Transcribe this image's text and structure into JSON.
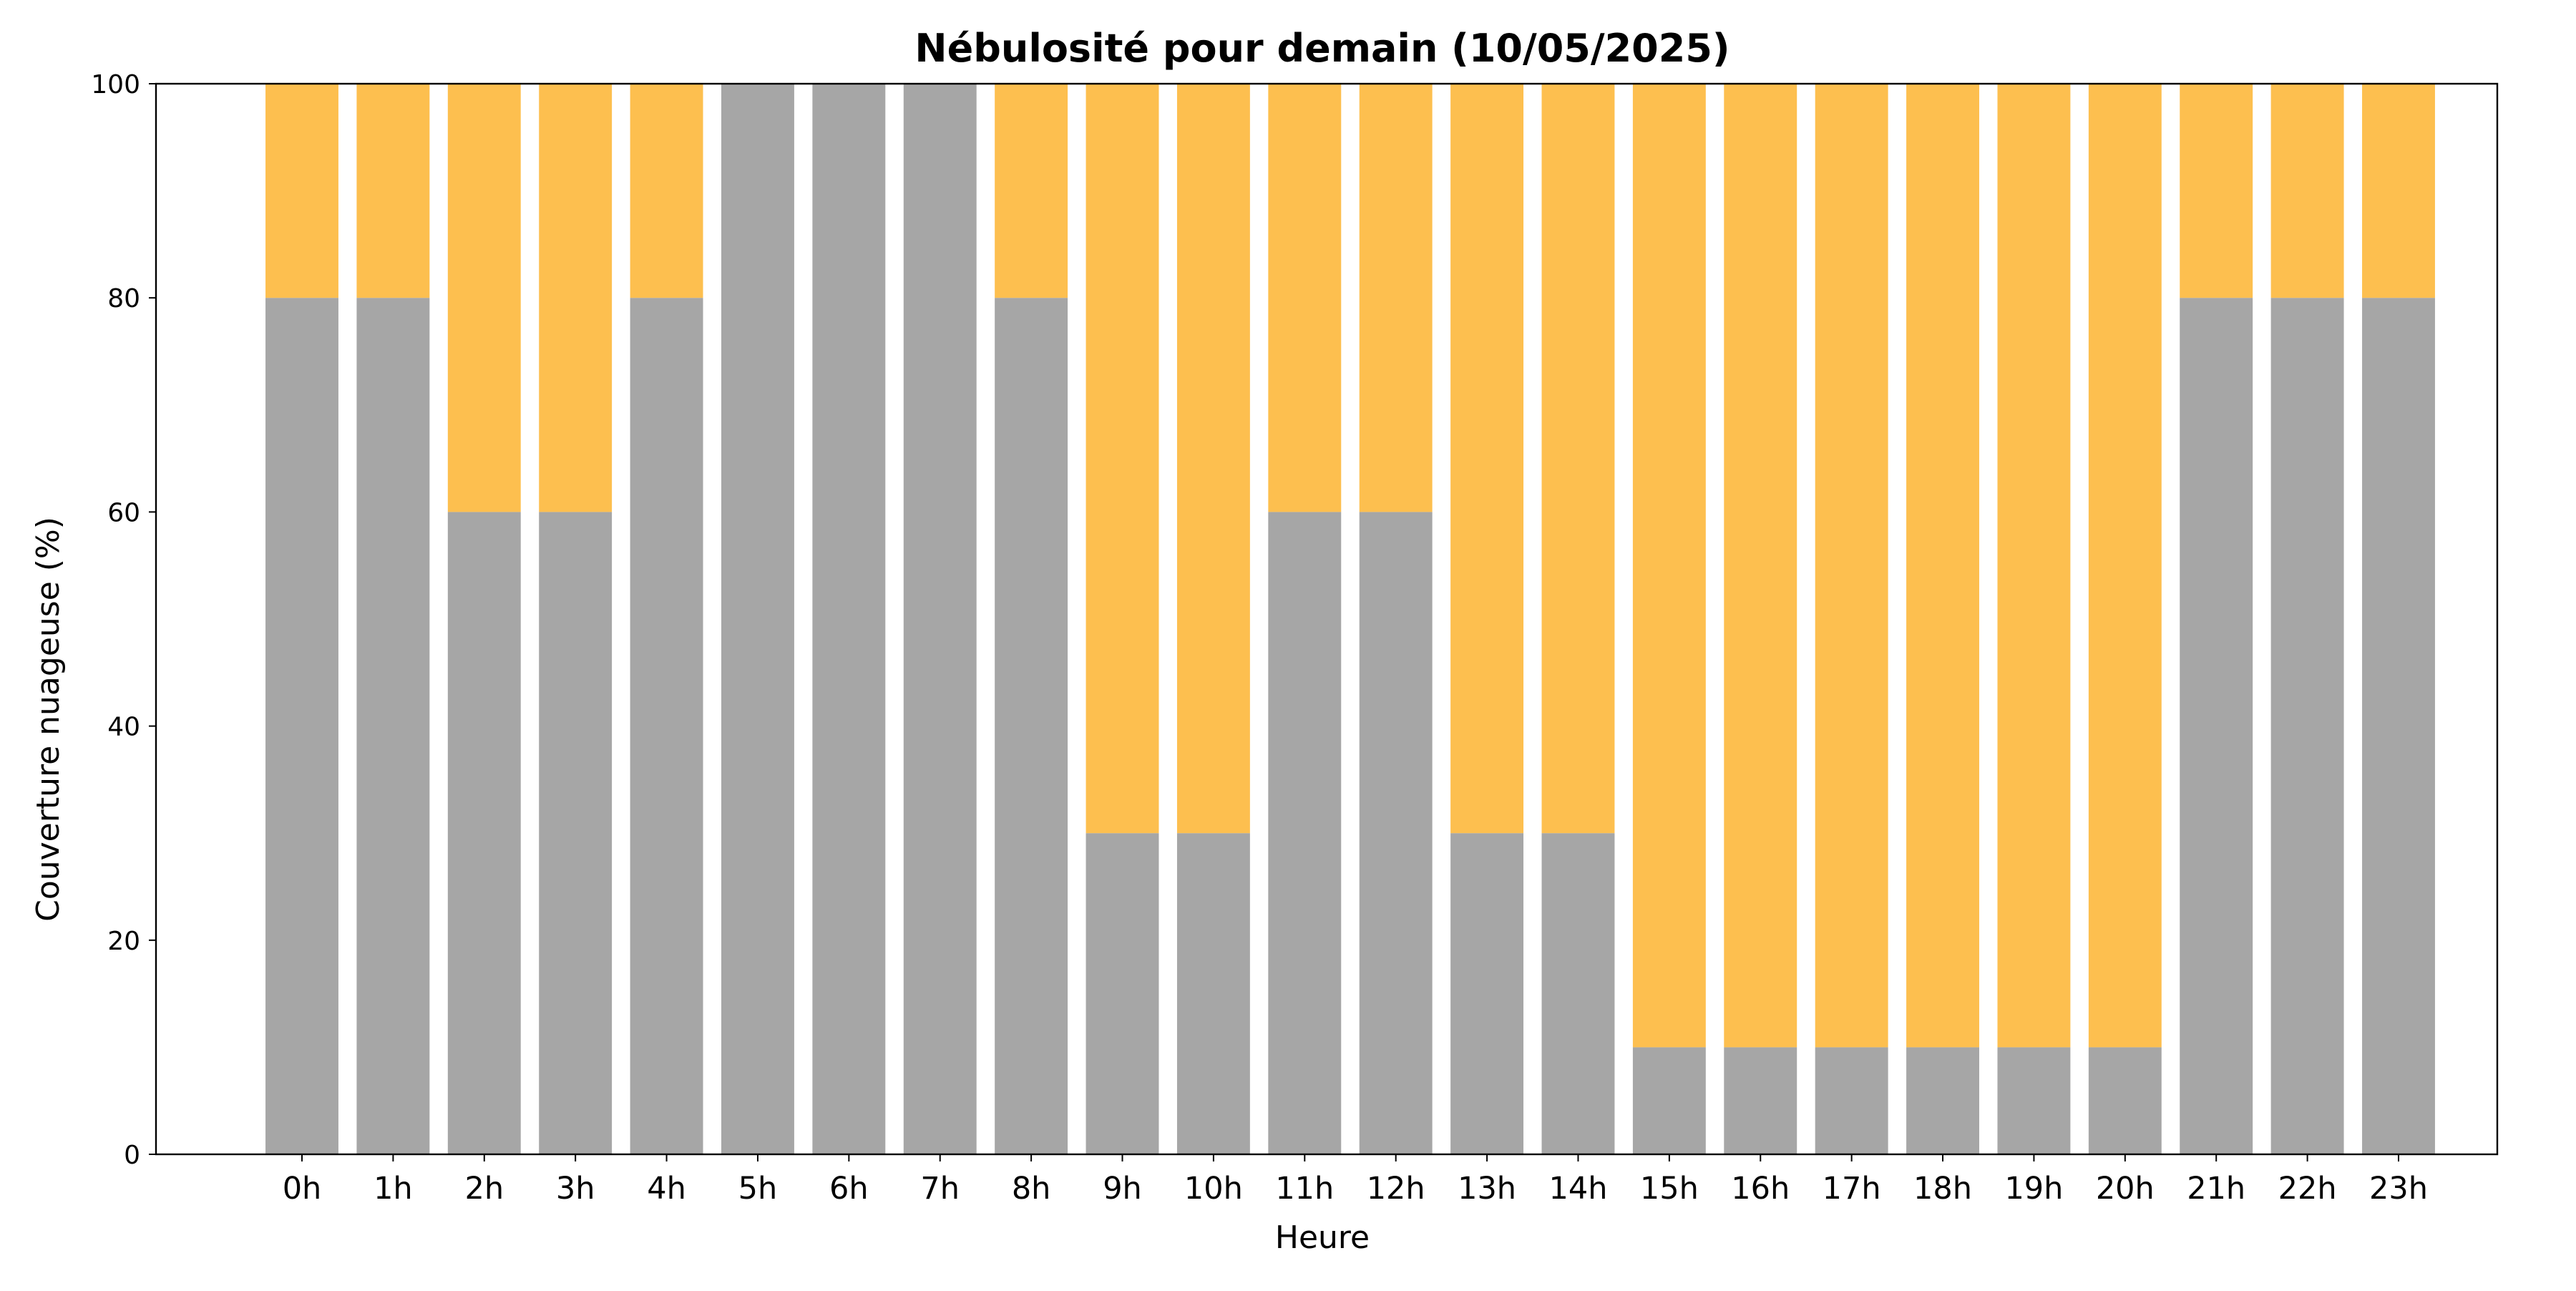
{
  "chart_data": {
    "type": "bar",
    "stacked": true,
    "title": "Nébulosité pour demain (10/05/2025)",
    "xlabel": "Heure",
    "ylabel": "Couverture nuageuse (%)",
    "ylim": [
      0,
      100
    ],
    "yticks": [
      0,
      20,
      40,
      60,
      80,
      100
    ],
    "grid": false,
    "legend": "none",
    "categories": [
      "0h",
      "1h",
      "2h",
      "3h",
      "4h",
      "5h",
      "6h",
      "7h",
      "8h",
      "9h",
      "10h",
      "11h",
      "12h",
      "13h",
      "14h",
      "15h",
      "16h",
      "17h",
      "18h",
      "19h",
      "20h",
      "21h",
      "22h",
      "23h"
    ],
    "series": [
      {
        "color": "#a6a6a6",
        "values": [
          80,
          80,
          60,
          60,
          80,
          100,
          100,
          100,
          80,
          30,
          30,
          60,
          60,
          30,
          30,
          10,
          10,
          10,
          10,
          10,
          10,
          80,
          80,
          80
        ]
      },
      {
        "color": "#fdbf4f",
        "values": [
          20,
          20,
          40,
          40,
          20,
          0,
          0,
          0,
          20,
          70,
          70,
          40,
          40,
          70,
          70,
          90,
          90,
          90,
          90,
          90,
          90,
          20,
          20,
          20
        ]
      }
    ]
  }
}
